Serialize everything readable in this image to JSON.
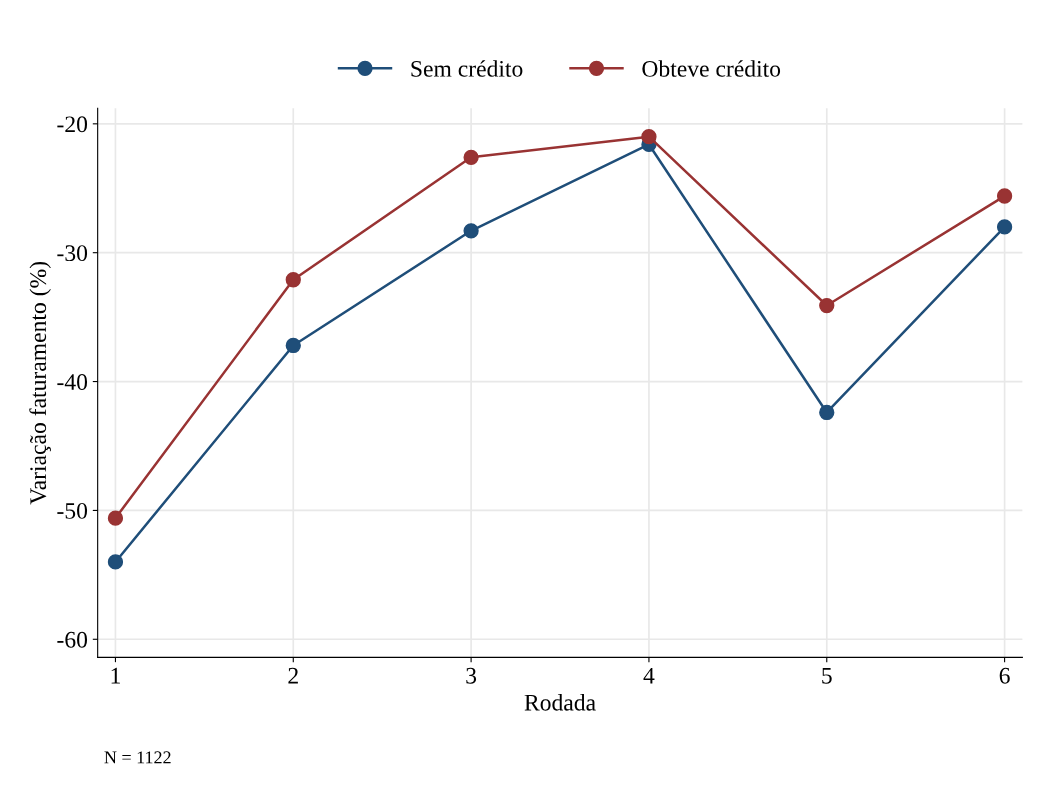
{
  "chart_data": {
    "type": "line",
    "xlabel": "Rodada",
    "ylabel": "Variação faturamento (%)",
    "x": [
      1,
      2,
      3,
      4,
      5,
      6
    ],
    "series": [
      {
        "name": "Sem crédito",
        "color": "#1f4e79",
        "values": [
          -54.0,
          -37.2,
          -28.3,
          -21.6,
          -42.4,
          -28.0
        ]
      },
      {
        "name": "Obteve crédito",
        "color": "#993333",
        "values": [
          -50.6,
          -32.1,
          -22.6,
          -21.0,
          -34.1,
          -25.6
        ]
      }
    ],
    "xlim": [
      0.9,
      6.1
    ],
    "xticks": [
      1,
      2,
      3,
      4,
      5,
      6
    ],
    "ylim": [
      -61.4,
      -18.8
    ],
    "yticks": [
      {
        "value": -60,
        "label": "-60"
      },
      {
        "value": -50,
        "label": "-50"
      },
      {
        "value": -40,
        "label": "-40"
      },
      {
        "value": -30,
        "label": "-30"
      },
      {
        "value": -20,
        "label": "-20"
      }
    ],
    "grid": true,
    "legend": "top",
    "marker": "circle",
    "line_style": "solid",
    "annotations": [
      "N = 1122"
    ]
  }
}
